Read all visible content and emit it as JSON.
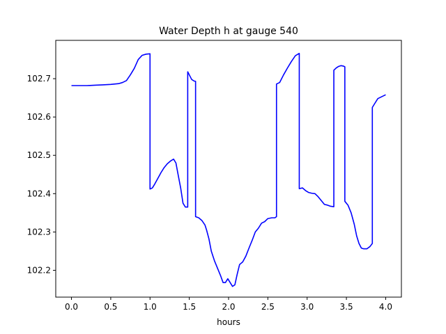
{
  "chart_data": {
    "type": "line",
    "title": "Water Depth h at gauge 540",
    "xlabel": "hours",
    "ylabel": "",
    "xlim": [
      -0.2,
      4.2
    ],
    "ylim": [
      102.13,
      102.8
    ],
    "grid": false,
    "x_ticks": [
      0.0,
      0.5,
      1.0,
      1.5,
      2.0,
      2.5,
      3.0,
      3.5,
      4.0
    ],
    "x_tick_labels": [
      "0.0",
      "0.5",
      "1.0",
      "1.5",
      "2.0",
      "2.5",
      "3.0",
      "3.5",
      "4.0"
    ],
    "y_ticks": [
      102.2,
      102.3,
      102.4,
      102.5,
      102.6,
      102.7
    ],
    "y_tick_labels": [
      "102.2",
      "102.3",
      "102.4",
      "102.5",
      "102.6",
      "102.7"
    ],
    "series": [
      {
        "color": "#0000ff",
        "x": [
          0.0,
          0.1,
          0.2,
          0.3,
          0.4,
          0.5,
          0.6,
          0.65,
          0.7,
          0.75,
          0.8,
          0.85,
          0.9,
          0.95,
          1.0,
          1.0,
          1.03,
          1.06,
          1.1,
          1.14,
          1.18,
          1.22,
          1.26,
          1.3,
          1.33,
          1.36,
          1.39,
          1.42,
          1.45,
          1.48,
          1.48,
          1.5,
          1.53,
          1.56,
          1.58,
          1.58,
          1.62,
          1.66,
          1.7,
          1.72,
          1.75,
          1.78,
          1.82,
          1.86,
          1.9,
          1.93,
          1.96,
          1.99,
          2.02,
          2.05,
          2.08,
          2.11,
          2.14,
          2.18,
          2.22,
          2.26,
          2.3,
          2.34,
          2.38,
          2.42,
          2.46,
          2.5,
          2.55,
          2.59,
          2.61,
          2.61,
          2.65,
          2.7,
          2.75,
          2.8,
          2.85,
          2.9,
          2.9,
          2.94,
          2.98,
          3.02,
          3.06,
          3.1,
          3.14,
          3.18,
          3.22,
          3.26,
          3.3,
          3.34,
          3.34,
          3.37,
          3.4,
          3.43,
          3.46,
          3.48,
          3.48,
          3.52,
          3.56,
          3.6,
          3.63,
          3.66,
          3.69,
          3.72,
          3.76,
          3.8,
          3.83,
          3.83,
          3.86,
          3.9,
          3.95,
          4.0
        ],
        "y": [
          102.682,
          102.682,
          102.682,
          102.683,
          102.684,
          102.685,
          102.687,
          102.69,
          102.695,
          102.71,
          102.727,
          102.75,
          102.761,
          102.764,
          102.765,
          102.412,
          102.415,
          102.425,
          102.44,
          102.455,
          102.468,
          102.478,
          102.485,
          102.49,
          102.48,
          102.447,
          102.415,
          102.375,
          102.365,
          102.365,
          102.718,
          102.71,
          102.698,
          102.694,
          102.693,
          102.34,
          102.337,
          102.33,
          102.318,
          102.305,
          102.282,
          102.25,
          102.225,
          102.205,
          102.185,
          102.168,
          102.168,
          102.178,
          102.168,
          102.158,
          102.162,
          102.19,
          102.215,
          102.222,
          102.237,
          102.258,
          102.278,
          102.3,
          102.31,
          102.323,
          102.327,
          102.335,
          102.337,
          102.337,
          102.34,
          102.686,
          102.69,
          102.71,
          102.728,
          102.745,
          102.76,
          102.766,
          102.413,
          102.415,
          102.408,
          102.403,
          102.401,
          102.4,
          102.392,
          102.382,
          102.372,
          102.37,
          102.367,
          102.366,
          102.722,
          102.728,
          102.732,
          102.734,
          102.733,
          102.731,
          102.38,
          102.37,
          102.35,
          102.32,
          102.29,
          102.27,
          102.258,
          102.256,
          102.256,
          102.262,
          102.27,
          102.625,
          102.635,
          102.648,
          102.653,
          102.658
        ]
      }
    ]
  }
}
